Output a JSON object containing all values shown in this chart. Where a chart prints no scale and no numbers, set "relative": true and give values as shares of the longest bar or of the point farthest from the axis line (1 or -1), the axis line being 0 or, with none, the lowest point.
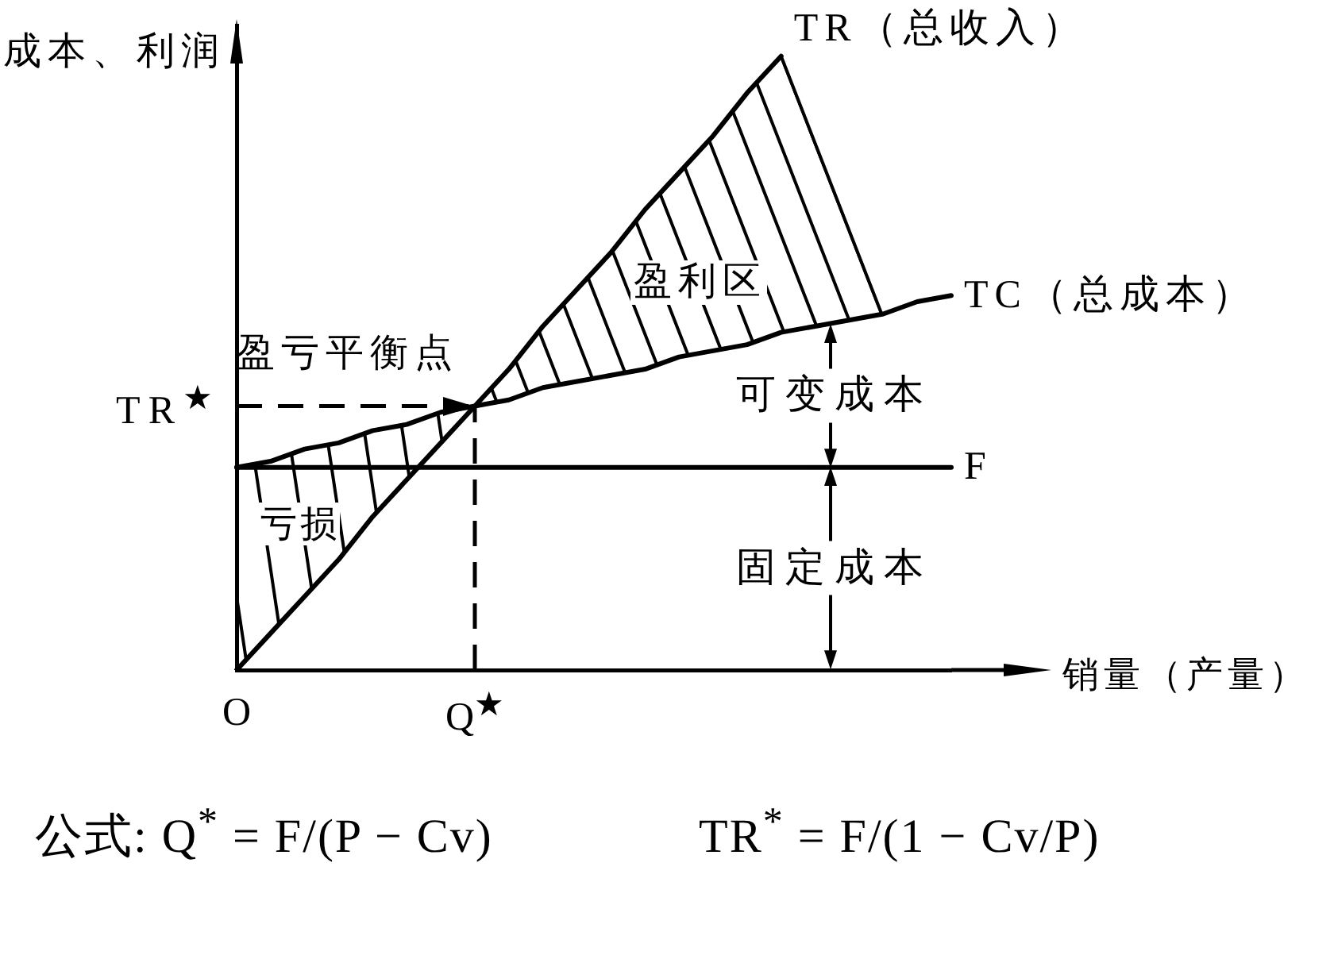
{
  "chart_data": {
    "type": "line",
    "xlabel": "销量（产量）",
    "ylabel": "成本、利润",
    "relative": true,
    "categories": [
      "O",
      null,
      null,
      null,
      null,
      null,
      null,
      "Q$^{★}$",
      null,
      null,
      null,
      null,
      null,
      null,
      null,
      null,
      null,
      null,
      null,
      null,
      null,
      null
    ],
    "series": [
      {
        "name": "TR（总收入）",
        "color": "#000000",
        "values": [
          0,
          0.06,
          0.12,
          0.18,
          0.25,
          0.31,
          0.37,
          0.43,
          0.49,
          0.56,
          0.62,
          0.68,
          0.75,
          0.81,
          0.87,
          0.94,
          1,
          null,
          null,
          null,
          null,
          null
        ]
      },
      {
        "name": "TC（总成本）",
        "color": "#000000",
        "values": [
          0.33,
          0.34,
          0.36,
          0.37,
          0.39,
          0.4,
          0.42,
          0.43,
          0.44,
          0.46,
          0.47,
          0.48,
          0.49,
          0.51,
          0.52,
          0.53,
          0.55,
          0.56,
          0.57,
          0.58,
          0.6,
          0.61
        ]
      },
      {
        "name": "F",
        "color": "#000000",
        "values": [
          0.33,
          0.33,
          0.33,
          0.33,
          0.33,
          0.33,
          0.33,
          0.33,
          0.33,
          0.33,
          0.33,
          0.33,
          0.33,
          0.33,
          0.33,
          0.33,
          0.33,
          0.33,
          0.33,
          0.33,
          0.33,
          0.33
        ]
      }
    ],
    "ref_lines": [
      {
        "axis": "y",
        "value": 0.43,
        "label": "TR$^{★}$",
        "line_style": "dashed"
      },
      {
        "axis": "x",
        "value": "Q$^{★}$",
        "line_style": "dashed"
      }
    ],
    "annotations": [
      "盈利区",
      "亏损",
      {
        "text": "盈亏平衡点",
        "x": "Q$^{★}$",
        "y": 0.43
      },
      "可变成本",
      "固定成本",
      "公式: Q$^{*}$ = F/(P − Cv)",
      "TR$^{*}$ = F/(1 − Cv/P)"
    ]
  }
}
